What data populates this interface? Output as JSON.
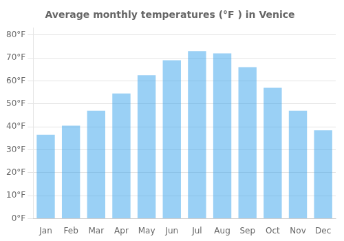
{
  "chart_data": {
    "type": "bar",
    "title": "Average monthly temperatures (°F ) in Venice",
    "categories": [
      "Jan",
      "Feb",
      "Mar",
      "Apr",
      "May",
      "Jun",
      "Jul",
      "Aug",
      "Sep",
      "Oct",
      "Nov",
      "Dec"
    ],
    "values": [
      36.5,
      40.5,
      47.0,
      54.5,
      62.5,
      69.0,
      73.0,
      72.0,
      66.0,
      57.0,
      47.0,
      38.5
    ],
    "ylim": [
      0,
      83
    ],
    "yticks": [
      {
        "value": 0,
        "label": "0°F"
      },
      {
        "value": 10,
        "label": "10°F"
      },
      {
        "value": 20,
        "label": "20°F"
      },
      {
        "value": 30,
        "label": "30°F"
      },
      {
        "value": 40,
        "label": "40°F"
      },
      {
        "value": 50,
        "label": "50°F"
      },
      {
        "value": 60,
        "label": "60°F"
      },
      {
        "value": 70,
        "label": "70°F"
      },
      {
        "value": 80,
        "label": "80°F"
      }
    ],
    "grid": true
  }
}
